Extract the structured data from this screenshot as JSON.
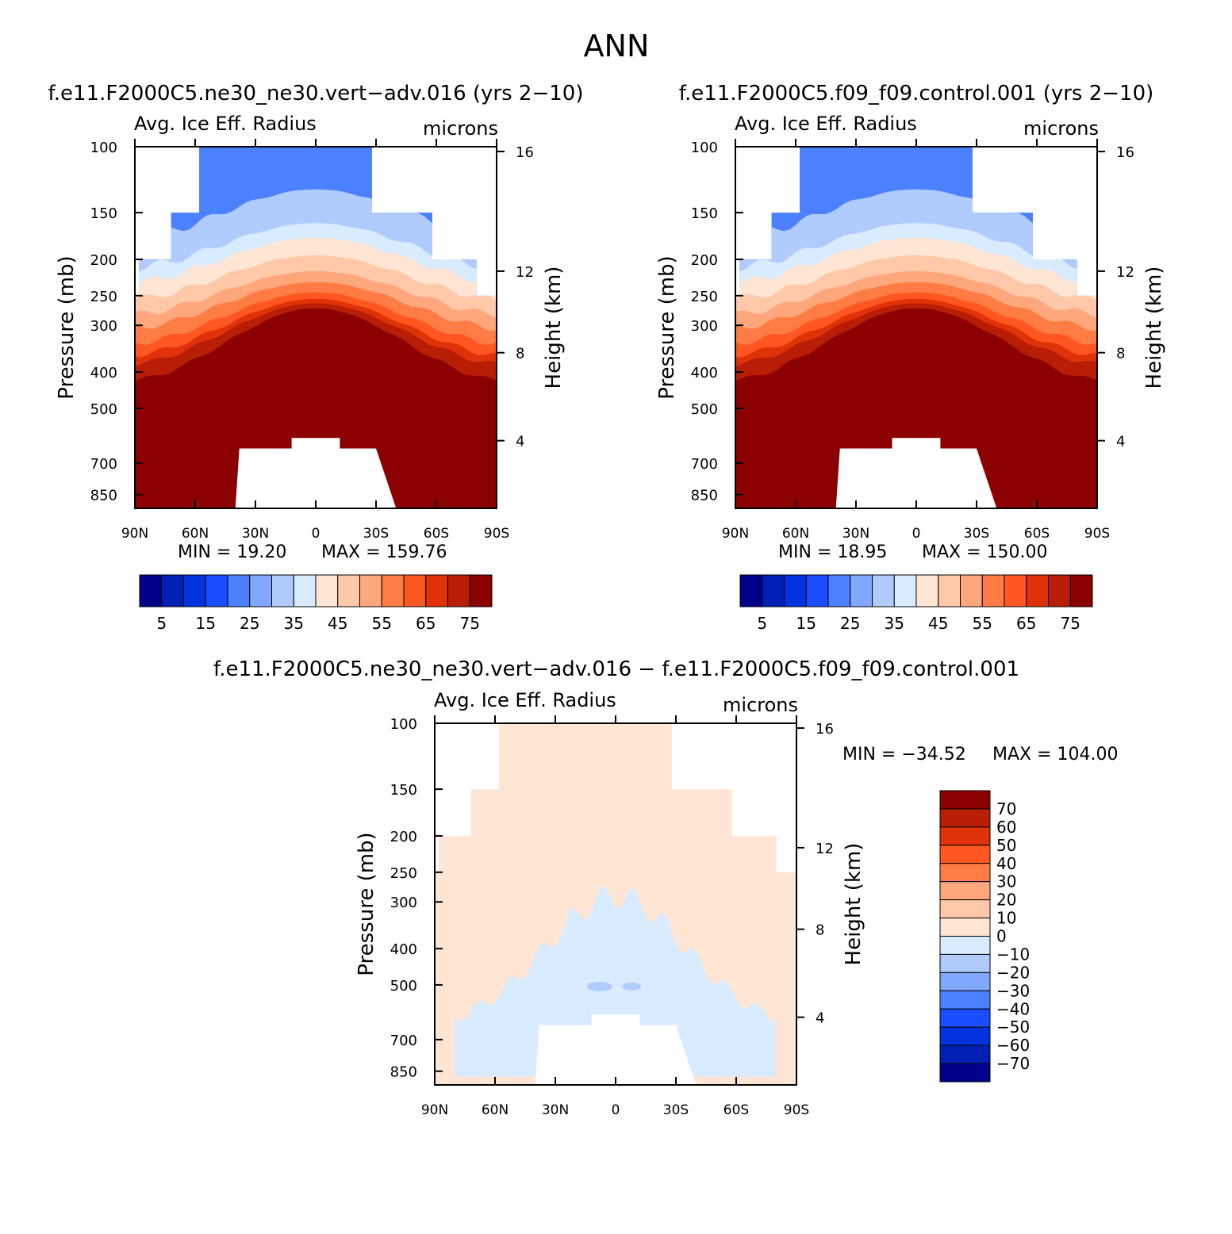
{
  "main_title": "ANN",
  "panels": [
    {
      "case_title": "f.e11.F2000C5.ne30_ne30.vert-adv.016 (yrs 2-10)",
      "variable": "Avg. Ice Eff. Radius",
      "units": "microns",
      "min_text": "MIN =    19.20",
      "max_text": "MAX  =  159.76",
      "colorbar_labels": [
        "5",
        "15",
        "25",
        "35",
        "45",
        "55",
        "65",
        "75"
      ]
    },
    {
      "case_title": "f.e11.F2000C5.f09_f09.control.001 (yrs 2-10)",
      "variable": "Avg. Ice Eff. Radius",
      "units": "microns",
      "min_text": "MIN =    18.95",
      "max_text": "MAX  =  150.00",
      "colorbar_labels": [
        "5",
        "15",
        "25",
        "35",
        "45",
        "55",
        "65",
        "75"
      ]
    },
    {
      "case_title": "f.e11.F2000C5.ne30_ne30.vert-adv.016 - f.e11.F2000C5.f09_f09.control.001",
      "variable": "Avg. Ice Eff. Radius",
      "units": "microns",
      "min_text": "MIN = -34.52",
      "max_text": "MAX  =  104.00",
      "colorbar_labels": [
        "70",
        "60",
        "50",
        "40",
        "30",
        "20",
        "10",
        "0",
        "-10",
        "-20",
        "-30",
        "-40",
        "-50",
        "-60",
        "-70"
      ]
    }
  ],
  "chart_data": [
    {
      "type": "heatmap",
      "title": "f.e11.F2000C5.ne30_ne30.vert-adv.016 (yrs 2-10)",
      "subtitle": "Avg. Ice Eff. Radius",
      "units": "microns",
      "xlabel": "",
      "ylabel": "Pressure (mb)",
      "y2label": "Height (km)",
      "x_tick_labels": [
        "90N",
        "60N",
        "30N",
        "0",
        "30S",
        "60S",
        "90S"
      ],
      "y_tick_labels": [
        "100",
        "150",
        "200",
        "250",
        "300",
        "400",
        "500",
        "700",
        "850"
      ],
      "y2_tick_labels": [
        "16",
        "12",
        "8",
        "4"
      ],
      "xlim": [
        90,
        -90
      ],
      "ylim": [
        100,
        925
      ],
      "levels": [
        5,
        10,
        15,
        20,
        25,
        30,
        35,
        40,
        45,
        50,
        55,
        60,
        65,
        70,
        75
      ],
      "colors": [
        "#00008b",
        "#0020b4",
        "#0033dd",
        "#1a4dff",
        "#4b80ff",
        "#80a8ff",
        "#b0ccff",
        "#d9ebff",
        "#ffe6d4",
        "#ffc8a8",
        "#ffa77c",
        "#ff7c45",
        "#ff5722",
        "#e03208",
        "#b81d05",
        "#8b0000"
      ],
      "min": 19.2,
      "max": 159.76
    },
    {
      "type": "heatmap",
      "title": "f.e11.F2000C5.f09_f09.control.001 (yrs 2-10)",
      "subtitle": "Avg. Ice Eff. Radius",
      "units": "microns",
      "xlabel": "",
      "ylabel": "Pressure (mb)",
      "y2label": "Height (km)",
      "x_tick_labels": [
        "90N",
        "60N",
        "30N",
        "0",
        "30S",
        "60S",
        "90S"
      ],
      "y_tick_labels": [
        "100",
        "150",
        "200",
        "250",
        "300",
        "400",
        "500",
        "700",
        "850"
      ],
      "y2_tick_labels": [
        "16",
        "12",
        "8",
        "4"
      ],
      "xlim": [
        90,
        -90
      ],
      "ylim": [
        100,
        925
      ],
      "levels": [
        5,
        10,
        15,
        20,
        25,
        30,
        35,
        40,
        45,
        50,
        55,
        60,
        65,
        70,
        75
      ],
      "colors": [
        "#00008b",
        "#0020b4",
        "#0033dd",
        "#1a4dff",
        "#4b80ff",
        "#80a8ff",
        "#b0ccff",
        "#d9ebff",
        "#ffe6d4",
        "#ffc8a8",
        "#ffa77c",
        "#ff7c45",
        "#ff5722",
        "#e03208",
        "#b81d05",
        "#8b0000"
      ],
      "min": 18.95,
      "max": 150.0
    },
    {
      "type": "heatmap",
      "title": "f.e11.F2000C5.ne30_ne30.vert-adv.016 - f.e11.F2000C5.f09_f09.control.001",
      "subtitle": "Avg. Ice Eff. Radius",
      "units": "microns",
      "xlabel": "",
      "ylabel": "Pressure (mb)",
      "y2label": "Height (km)",
      "x_tick_labels": [
        "90N",
        "60N",
        "30N",
        "0",
        "30S",
        "60S",
        "90S"
      ],
      "y_tick_labels": [
        "100",
        "150",
        "200",
        "250",
        "300",
        "400",
        "500",
        "700",
        "850"
      ],
      "y2_tick_labels": [
        "16",
        "12",
        "8",
        "4"
      ],
      "xlim": [
        90,
        -90
      ],
      "ylim": [
        100,
        925
      ],
      "levels": [
        -70,
        -60,
        -50,
        -40,
        -30,
        -20,
        -10,
        0,
        10,
        20,
        30,
        40,
        50,
        60,
        70
      ],
      "colors": [
        "#00008b",
        "#0020b4",
        "#0033dd",
        "#1a4dff",
        "#4b80ff",
        "#80a8ff",
        "#b0ccff",
        "#d9ebff",
        "#ffe6d4",
        "#ffc8a8",
        "#ffa77c",
        "#ff7c45",
        "#ff5722",
        "#e03208",
        "#b81d05",
        "#8b0000"
      ],
      "min": -34.52,
      "max": 104.0
    }
  ]
}
